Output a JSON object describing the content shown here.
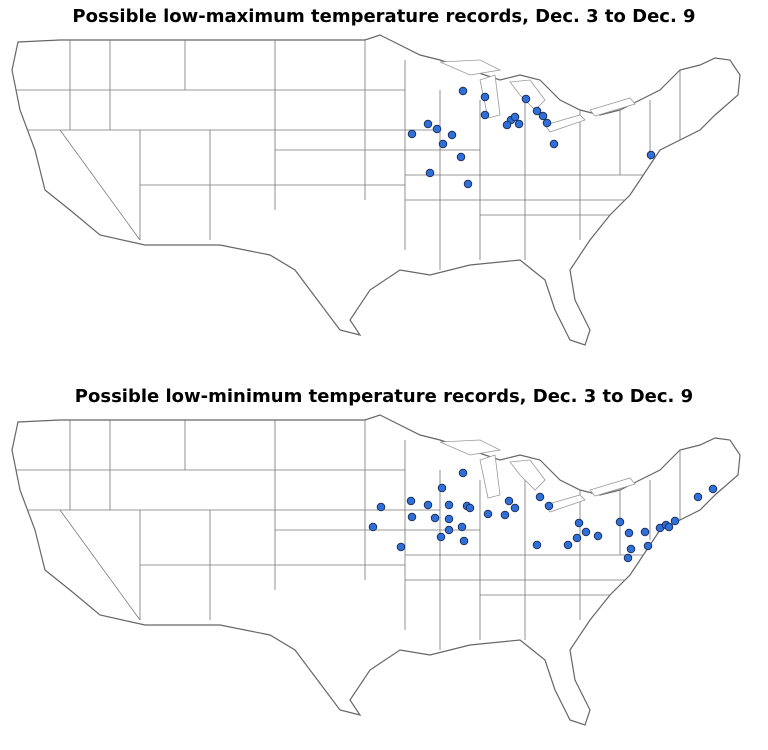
{
  "maps": [
    {
      "title": "Possible low-maximum temperature records, Dec. 3 to Dec. 9"
    },
    {
      "title": "Possible low-minimum temperature records, Dec. 3 to Dec. 9"
    }
  ]
}
